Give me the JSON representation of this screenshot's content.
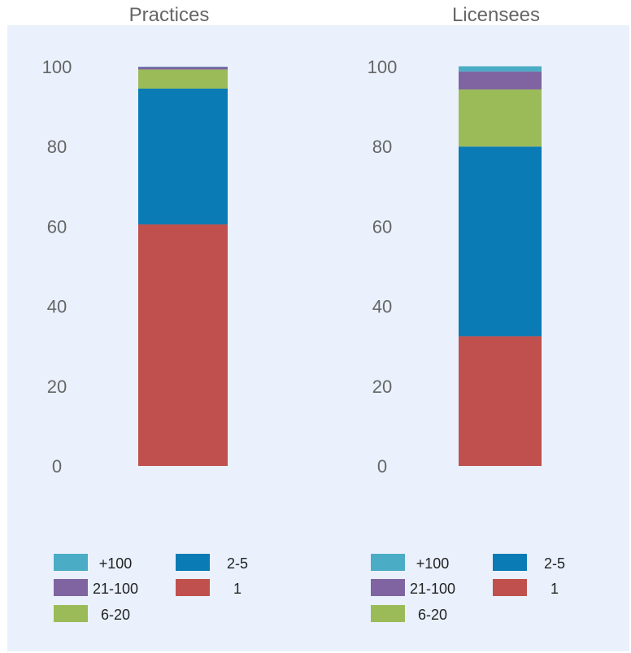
{
  "chart_data": [
    {
      "type": "bar",
      "stacked": true,
      "title": "Practices",
      "categories": [
        "Practices"
      ],
      "ylim": [
        0,
        100
      ],
      "yticks": [
        0,
        20,
        40,
        60,
        80,
        100
      ],
      "series": [
        {
          "name": "1",
          "values": [
            60.5
          ],
          "color": "#c0504d"
        },
        {
          "name": "2-5",
          "values": [
            34.0
          ],
          "color": "#0a7bb4"
        },
        {
          "name": "6-20",
          "values": [
            4.8
          ],
          "color": "#9bbb59"
        },
        {
          "name": "21-100",
          "values": [
            0.6
          ],
          "color": "#8064a2"
        },
        {
          "name": "+100",
          "values": [
            0.1
          ],
          "color": "#4bacc6"
        }
      ],
      "legend": {
        "placement": "bottom",
        "entries": [
          {
            "label": "+100",
            "color": "#4bacc6"
          },
          {
            "label": "2-5",
            "color": "#0a7bb4"
          },
          {
            "label": "21-100",
            "color": "#8064a2"
          },
          {
            "label": "1",
            "color": "#c0504d"
          },
          {
            "label": "6-20",
            "color": "#9bbb59"
          }
        ]
      },
      "grid": false
    },
    {
      "type": "bar",
      "stacked": true,
      "title": "Licensees",
      "categories": [
        "Licensees"
      ],
      "ylim": [
        0,
        100
      ],
      "yticks": [
        0,
        20,
        40,
        60,
        80,
        100
      ],
      "series": [
        {
          "name": "1",
          "values": [
            32.5
          ],
          "color": "#c0504d"
        },
        {
          "name": "2-5",
          "values": [
            47.5
          ],
          "color": "#0a7bb4"
        },
        {
          "name": "6-20",
          "values": [
            14.3
          ],
          "color": "#9bbb59"
        },
        {
          "name": "21-100",
          "values": [
            4.5
          ],
          "color": "#8064a2"
        },
        {
          "name": "+100",
          "values": [
            1.3
          ],
          "color": "#4bacc6"
        }
      ],
      "legend": {
        "placement": "bottom",
        "entries": [
          {
            "label": "+100",
            "color": "#4bacc6"
          },
          {
            "label": "2-5",
            "color": "#0a7bb4"
          },
          {
            "label": "21-100",
            "color": "#8064a2"
          },
          {
            "label": "1",
            "color": "#c0504d"
          },
          {
            "label": "6-20",
            "color": "#9bbb59"
          }
        ]
      },
      "grid": false
    }
  ]
}
